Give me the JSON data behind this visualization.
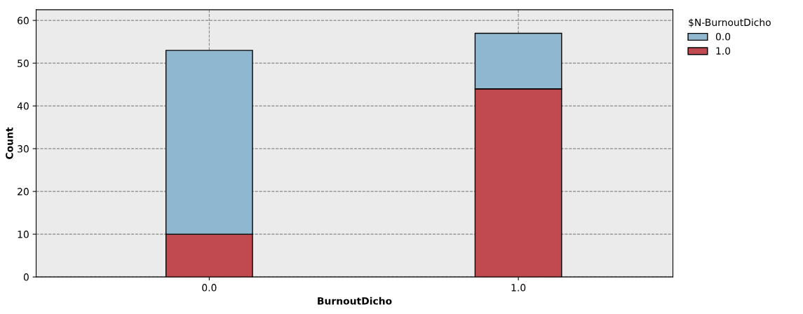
{
  "chart_data": {
    "type": "bar",
    "stacked": true,
    "xlabel": "BurnoutDicho",
    "ylabel": "Count",
    "legend_title": "$N-BurnoutDicho",
    "categories": [
      "0.0",
      "1.0"
    ],
    "series": [
      {
        "name": "1.0",
        "color": "#c04a4f",
        "values": [
          10,
          44
        ]
      },
      {
        "name": "0.0",
        "color": "#8fb8d0",
        "values": [
          43,
          13
        ]
      }
    ],
    "ylim": [
      0,
      62.5
    ],
    "yticks": [
      0,
      10,
      20,
      30,
      40,
      50,
      60
    ],
    "grid": true,
    "legend": "top right"
  }
}
